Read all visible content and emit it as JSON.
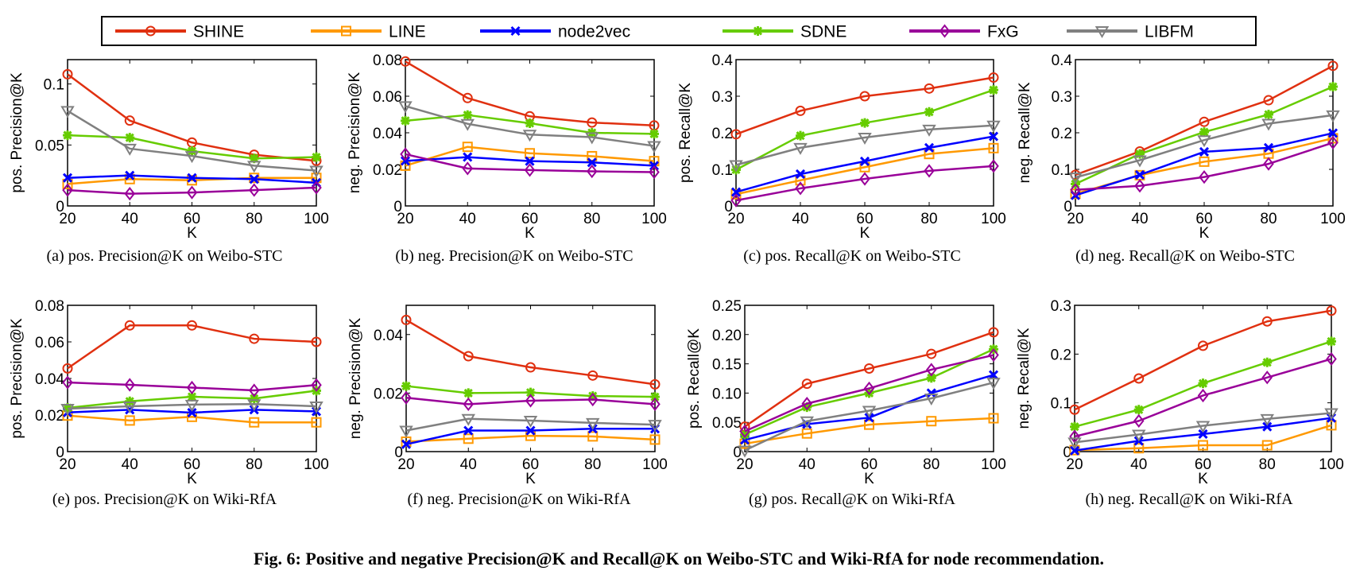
{
  "legend": {
    "placement": "top",
    "series": [
      {
        "name": "SHINE",
        "color": "#e03010",
        "marker": "circle"
      },
      {
        "name": "LINE",
        "color": "#ff9900",
        "marker": "square"
      },
      {
        "name": "node2vec",
        "color": "#0000ff",
        "marker": "x"
      },
      {
        "name": "SDNE",
        "color": "#66cc00",
        "marker": "asterisk"
      },
      {
        "name": "FxG",
        "color": "#990099",
        "marker": "diamond"
      },
      {
        "name": "LIBFM",
        "color": "#808080",
        "marker": "triangle-down"
      }
    ]
  },
  "figure_caption": "Fig. 6: Positive and negative Precision@K and Recall@K on Weibo-STC and Wiki-RfA for node recommendation.",
  "chart_data": [
    {
      "type": "line",
      "caption": "(a) pos. Precision@K on Weibo-STC",
      "xlabel": "K",
      "ylabel": "pos. Precision@K",
      "x": [
        20,
        40,
        60,
        80,
        100
      ],
      "xlim": [
        20,
        100
      ],
      "ylim": [
        0,
        0.12
      ],
      "yticks": [
        0,
        0.05,
        0.1
      ],
      "yticklabels": [
        "0",
        "0.05",
        "0.1"
      ],
      "series": [
        {
          "name": "SHINE",
          "values": [
            0.108,
            0.07,
            0.052,
            0.042,
            0.037
          ]
        },
        {
          "name": "LINE",
          "values": [
            0.018,
            0.022,
            0.021,
            0.023,
            0.023
          ]
        },
        {
          "name": "node2vec",
          "values": [
            0.023,
            0.025,
            0.023,
            0.022,
            0.019
          ]
        },
        {
          "name": "SDNE",
          "values": [
            0.058,
            0.056,
            0.045,
            0.039,
            0.04
          ]
        },
        {
          "name": "FxG",
          "values": [
            0.013,
            0.01,
            0.011,
            0.013,
            0.015
          ]
        },
        {
          "name": "LIBFM",
          "values": [
            0.078,
            0.047,
            0.041,
            0.033,
            0.029
          ]
        }
      ]
    },
    {
      "type": "line",
      "caption": "(b) neg. Precision@K on Weibo-STC",
      "xlabel": "K",
      "ylabel": "neg. Precision@K",
      "x": [
        20,
        40,
        60,
        80,
        100
      ],
      "xlim": [
        20,
        100
      ],
      "ylim": [
        0,
        0.08
      ],
      "yticks": [
        0,
        0.02,
        0.04,
        0.06,
        0.08
      ],
      "yticklabels": [
        "0",
        "0.02",
        "0.04",
        "0.06",
        "0.08"
      ],
      "series": [
        {
          "name": "SHINE",
          "values": [
            0.079,
            0.059,
            0.049,
            0.0456,
            0.044
          ]
        },
        {
          "name": "LINE",
          "values": [
            0.022,
            0.0323,
            0.0288,
            0.0272,
            0.0245
          ]
        },
        {
          "name": "node2vec",
          "values": [
            0.0246,
            0.0267,
            0.0245,
            0.0238,
            0.022
          ]
        },
        {
          "name": "SDNE",
          "values": [
            0.0466,
            0.0497,
            0.0452,
            0.04,
            0.0394
          ]
        },
        {
          "name": "FxG",
          "values": [
            0.0283,
            0.0205,
            0.0196,
            0.0189,
            0.0185
          ]
        },
        {
          "name": "LIBFM",
          "values": [
            0.0546,
            0.0449,
            0.039,
            0.0376,
            0.0328
          ]
        }
      ]
    },
    {
      "type": "line",
      "caption": "(c) pos. Recall@K on Weibo-STC",
      "xlabel": "K",
      "ylabel": "pos. Recall@K",
      "x": [
        20,
        40,
        60,
        80,
        100
      ],
      "xlim": [
        20,
        100
      ],
      "ylim": [
        0,
        0.4
      ],
      "yticks": [
        0,
        0.1,
        0.2,
        0.3,
        0.4
      ],
      "yticklabels": [
        "0",
        "0.1",
        "0.2",
        "0.3",
        "0.4"
      ],
      "series": [
        {
          "name": "SHINE",
          "values": [
            0.196,
            0.26,
            0.3,
            0.321,
            0.351
          ]
        },
        {
          "name": "LINE",
          "values": [
            0.032,
            0.07,
            0.106,
            0.142,
            0.158
          ]
        },
        {
          "name": "node2vec",
          "values": [
            0.038,
            0.087,
            0.122,
            0.159,
            0.19
          ]
        },
        {
          "name": "SDNE",
          "values": [
            0.099,
            0.192,
            0.227,
            0.257,
            0.317
          ]
        },
        {
          "name": "FxG",
          "values": [
            0.015,
            0.048,
            0.074,
            0.096,
            0.109
          ]
        },
        {
          "name": "LIBFM",
          "values": [
            0.112,
            0.159,
            0.187,
            0.209,
            0.22
          ]
        }
      ]
    },
    {
      "type": "line",
      "caption": "(d) neg. Recall@K on Weibo-STC",
      "xlabel": "K",
      "ylabel": "neg. Recall@K",
      "x": [
        20,
        40,
        60,
        80,
        100
      ],
      "xlim": [
        20,
        100
      ],
      "ylim": [
        0,
        0.4
      ],
      "yticks": [
        0,
        0.1,
        0.2,
        0.3,
        0.4
      ],
      "yticklabels": [
        "0",
        "0.1",
        "0.2",
        "0.3",
        "0.4"
      ],
      "series": [
        {
          "name": "SHINE",
          "values": [
            0.085,
            0.149,
            0.23,
            0.289,
            0.383
          ]
        },
        {
          "name": "LINE",
          "values": [
            0.033,
            0.084,
            0.121,
            0.143,
            0.185
          ]
        },
        {
          "name": "node2vec",
          "values": [
            0.029,
            0.085,
            0.148,
            0.159,
            0.199
          ]
        },
        {
          "name": "SDNE",
          "values": [
            0.06,
            0.142,
            0.202,
            0.25,
            0.326
          ]
        },
        {
          "name": "FxG",
          "values": [
            0.044,
            0.055,
            0.079,
            0.115,
            0.173
          ]
        },
        {
          "name": "LIBFM",
          "values": [
            0.078,
            0.125,
            0.18,
            0.225,
            0.248
          ]
        }
      ]
    },
    {
      "type": "line",
      "caption": "(e) pos. Precision@K on Wiki-RfA",
      "xlabel": "K",
      "ylabel": "pos. Precision@K",
      "x": [
        20,
        40,
        60,
        80,
        100
      ],
      "xlim": [
        20,
        100
      ],
      "ylim": [
        0,
        0.08
      ],
      "yticks": [
        0,
        0.02,
        0.04,
        0.06,
        0.08
      ],
      "yticklabels": [
        "0",
        "0.02",
        "0.04",
        "0.06",
        "0.08"
      ],
      "series": [
        {
          "name": "SHINE",
          "values": [
            0.0455,
            0.069,
            0.069,
            0.0617,
            0.06
          ]
        },
        {
          "name": "LINE",
          "values": [
            0.0197,
            0.017,
            0.019,
            0.016,
            0.016
          ]
        },
        {
          "name": "node2vec",
          "values": [
            0.0214,
            0.0229,
            0.0213,
            0.0229,
            0.022
          ]
        },
        {
          "name": "SDNE",
          "values": [
            0.0239,
            0.0275,
            0.03,
            0.029,
            0.0333
          ]
        },
        {
          "name": "FxG",
          "values": [
            0.0378,
            0.0365,
            0.035,
            0.0335,
            0.0364
          ]
        },
        {
          "name": "LIBFM",
          "values": [
            0.0235,
            0.0248,
            0.0257,
            0.026,
            0.0248
          ]
        }
      ]
    },
    {
      "type": "line",
      "caption": "(f) neg. Precision@K on Wiki-RfA",
      "xlabel": "K",
      "ylabel": "neg. Precision@K",
      "x": [
        20,
        40,
        60,
        80,
        100
      ],
      "xlim": [
        20,
        100
      ],
      "ylim": [
        0,
        0.05
      ],
      "yticks": [
        0,
        0.02,
        0.04
      ],
      "yticklabels": [
        "0",
        "0.02",
        "0.04"
      ],
      "series": [
        {
          "name": "SHINE",
          "values": [
            0.045,
            0.0326,
            0.0288,
            0.026,
            0.023
          ]
        },
        {
          "name": "LINE",
          "values": [
            0.0034,
            0.0044,
            0.0054,
            0.0052,
            0.0041
          ]
        },
        {
          "name": "node2vec",
          "values": [
            0.0025,
            0.0072,
            0.0072,
            0.0078,
            0.0078
          ]
        },
        {
          "name": "SDNE",
          "values": [
            0.0224,
            0.02,
            0.0202,
            0.019,
            0.0187
          ]
        },
        {
          "name": "FxG",
          "values": [
            0.0184,
            0.0162,
            0.0174,
            0.0178,
            0.0162
          ]
        },
        {
          "name": "LIBFM",
          "values": [
            0.0072,
            0.0112,
            0.0106,
            0.0098,
            0.0092
          ]
        }
      ]
    },
    {
      "type": "line",
      "caption": "(g) pos. Recall@K on Wiki-RfA",
      "xlabel": "K",
      "ylabel": "pos. Recall@K",
      "x": [
        20,
        40,
        60,
        80,
        100
      ],
      "xlim": [
        20,
        100
      ],
      "ylim": [
        0,
        0.25
      ],
      "yticks": [
        0,
        0.05,
        0.1,
        0.15,
        0.2,
        0.25
      ],
      "yticklabels": [
        "0",
        "0.05",
        "0.10",
        "0.15",
        "0.20",
        "0.25"
      ],
      "series": [
        {
          "name": "SHINE",
          "values": [
            0.0426,
            0.116,
            0.142,
            0.167,
            0.204
          ]
        },
        {
          "name": "LINE",
          "values": [
            0.0135,
            0.031,
            0.046,
            0.052,
            0.057
          ]
        },
        {
          "name": "node2vec",
          "values": [
            0.02,
            0.047,
            0.058,
            0.1,
            0.131
          ]
        },
        {
          "name": "SDNE",
          "values": [
            0.029,
            0.076,
            0.1,
            0.126,
            0.175
          ]
        },
        {
          "name": "FxG",
          "values": [
            0.0346,
            0.082,
            0.108,
            0.14,
            0.165
          ]
        },
        {
          "name": "LIBFM",
          "values": [
            0.002,
            0.052,
            0.07,
            0.091,
            0.118
          ]
        }
      ]
    },
    {
      "type": "line",
      "caption": "(h) neg. Recall@K on Wiki-RfA",
      "xlabel": "K",
      "ylabel": "neg. Recall@K",
      "x": [
        20,
        40,
        60,
        80,
        100
      ],
      "xlim": [
        20,
        100
      ],
      "ylim": [
        0,
        0.3
      ],
      "yticks": [
        0,
        0.1,
        0.2,
        0.3
      ],
      "yticklabels": [
        "0",
        "0.1",
        "0.2",
        "0.3"
      ],
      "series": [
        {
          "name": "SHINE",
          "values": [
            0.086,
            0.15,
            0.217,
            0.267,
            0.289
          ]
        },
        {
          "name": "LINE",
          "values": [
            0.003,
            0.007,
            0.013,
            0.013,
            0.054
          ]
        },
        {
          "name": "node2vec",
          "values": [
            0.002,
            0.022,
            0.036,
            0.051,
            0.069
          ]
        },
        {
          "name": "SDNE",
          "values": [
            0.051,
            0.086,
            0.14,
            0.183,
            0.226
          ]
        },
        {
          "name": "FxG",
          "values": [
            0.031,
            0.063,
            0.115,
            0.152,
            0.19
          ]
        },
        {
          "name": "LIBFM",
          "values": [
            0.019,
            0.035,
            0.053,
            0.067,
            0.079
          ]
        }
      ]
    }
  ]
}
